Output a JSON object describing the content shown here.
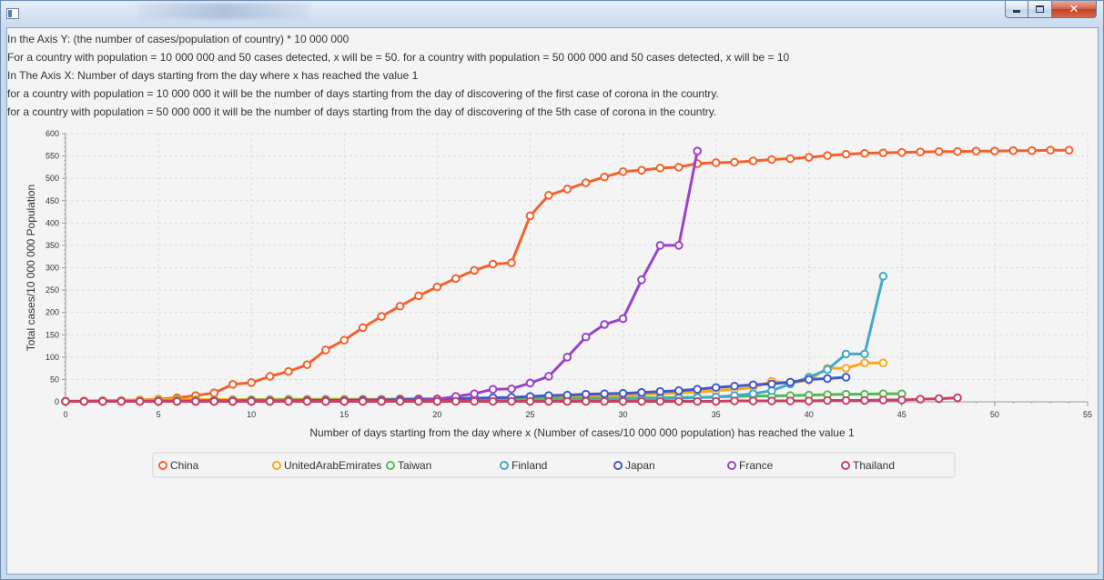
{
  "info_lines": [
    "In the Axis Y: (the number of cases/population of country) * 10 000 000",
    "For a country with population = 10 000 000 and 50 cases detected, x will be = 50. for a country with population = 50 000 000 and 50 cases detected, x will be = 10",
    "In The Axis X: Number of days starting from the day where x has reached the value 1",
    "for a country with population = 10 000 000 it will be the number of days starting from the day of discovering of the first case of corona in the country.",
    "for a country with population = 50 000 000 it will be the number of days starting from the day of discovering of the 5th case of corona in the country."
  ],
  "window": {
    "close_glyph": "✕"
  },
  "chart_data": {
    "type": "line",
    "title": "",
    "xlabel": "Number of days starting from the day where x (Number of cases/10 000 000 population) has reached the value 1",
    "ylabel": "Total cases/10 000 000 Population",
    "xlim": [
      0,
      55
    ],
    "ylim": [
      0,
      600
    ],
    "xticks": [
      0,
      5,
      10,
      15,
      20,
      25,
      30,
      35,
      40,
      45,
      50,
      55
    ],
    "yticks": [
      0,
      50,
      100,
      150,
      200,
      250,
      300,
      350,
      400,
      450,
      500,
      550,
      600
    ],
    "grid": true,
    "legend_position": "bottom",
    "series": [
      {
        "name": "China",
        "color": "#f3622d",
        "x": [
          0,
          1,
          2,
          3,
          4,
          5,
          6,
          7,
          8,
          9,
          10,
          11,
          12,
          13,
          14,
          15,
          16,
          17,
          18,
          19,
          20,
          21,
          22,
          23,
          24,
          25,
          26,
          27,
          28,
          29,
          30,
          31,
          32,
          33,
          34,
          35,
          36,
          37,
          38,
          39,
          40,
          41,
          42,
          43,
          44,
          45,
          46,
          47,
          48,
          49,
          50,
          51,
          52,
          53,
          54
        ],
        "y": [
          1,
          2,
          2,
          3,
          4,
          6,
          9,
          14,
          20,
          39,
          43,
          57,
          68,
          83,
          116,
          138,
          166,
          191,
          214,
          237,
          257,
          276,
          294,
          308,
          311,
          416,
          462,
          476,
          490,
          503,
          515,
          518,
          523,
          525,
          533,
          535,
          536,
          539,
          542,
          544,
          547,
          551,
          554,
          556,
          557,
          558,
          559,
          560,
          560,
          561,
          561,
          562,
          562,
          563,
          563
        ]
      },
      {
        "name": "UnitedArabEmirates",
        "color": "#fba71b",
        "x": [
          0,
          1,
          2,
          3,
          4,
          5,
          6,
          7,
          8,
          9,
          10,
          11,
          12,
          13,
          14,
          15,
          16,
          17,
          18,
          19,
          20,
          21,
          22,
          23,
          24,
          25,
          26,
          27,
          28,
          29,
          30,
          31,
          32,
          33,
          34,
          35,
          36,
          37,
          38,
          39,
          40,
          41,
          42,
          43,
          44
        ],
        "y": [
          1,
          2,
          3,
          3,
          4,
          5,
          5,
          5,
          5,
          5,
          5,
          5,
          6,
          6,
          6,
          6,
          6,
          6,
          7,
          7,
          7,
          8,
          8,
          9,
          9,
          10,
          10,
          11,
          12,
          13,
          14,
          16,
          18,
          20,
          22,
          25,
          28,
          32,
          46,
          42,
          49,
          75,
          75,
          87,
          87
        ]
      },
      {
        "name": "Taiwan",
        "color": "#57b757",
        "x": [
          0,
          1,
          2,
          3,
          4,
          5,
          6,
          7,
          8,
          9,
          10,
          11,
          12,
          13,
          14,
          15,
          16,
          17,
          18,
          19,
          20,
          21,
          22,
          23,
          24,
          25,
          26,
          27,
          28,
          29,
          30,
          31,
          32,
          33,
          34,
          35,
          36,
          37,
          38,
          39,
          40,
          41,
          42,
          43,
          44,
          45
        ],
        "y": [
          1,
          1,
          2,
          2,
          2,
          3,
          3,
          3,
          3,
          3,
          4,
          4,
          4,
          4,
          4,
          4,
          4,
          4,
          5,
          5,
          5,
          5,
          6,
          6,
          6,
          7,
          7,
          7,
          8,
          8,
          8,
          9,
          9,
          10,
          10,
          11,
          12,
          13,
          13,
          14,
          15,
          16,
          17,
          17,
          18,
          18
        ]
      },
      {
        "name": "Finland",
        "color": "#41a9c9",
        "x": [
          0,
          1,
          2,
          3,
          4,
          5,
          6,
          7,
          8,
          9,
          10,
          11,
          12,
          13,
          14,
          15,
          16,
          17,
          18,
          19,
          20,
          21,
          22,
          23,
          24,
          25,
          26,
          27,
          28,
          29,
          30,
          31,
          32,
          33,
          34,
          35,
          36,
          37,
          38,
          39,
          40,
          41,
          42,
          43,
          44
        ],
        "y": [
          1,
          1,
          1,
          1,
          1,
          1,
          1,
          1,
          1,
          1,
          1,
          1,
          1,
          1,
          1,
          1,
          1,
          1,
          1,
          1,
          1,
          2,
          2,
          2,
          2,
          2,
          3,
          3,
          4,
          4,
          5,
          6,
          7,
          8,
          9,
          11,
          14,
          18,
          25,
          40,
          55,
          72,
          107,
          107,
          281
        ]
      },
      {
        "name": "Japan",
        "color": "#4258c9",
        "x": [
          0,
          1,
          2,
          3,
          4,
          5,
          6,
          7,
          8,
          9,
          10,
          11,
          12,
          13,
          14,
          15,
          16,
          17,
          18,
          19,
          20,
          21,
          22,
          23,
          24,
          25,
          26,
          27,
          28,
          29,
          30,
          31,
          32,
          33,
          34,
          35,
          36,
          37,
          38,
          39,
          40,
          41,
          42
        ],
        "y": [
          1,
          1,
          1,
          1,
          1,
          1,
          1,
          1,
          2,
          2,
          2,
          2,
          2,
          3,
          3,
          3,
          4,
          4,
          5,
          6,
          6,
          7,
          8,
          9,
          10,
          12,
          14,
          15,
          17,
          18,
          19,
          21,
          23,
          25,
          28,
          32,
          35,
          38,
          40,
          44,
          50,
          52,
          55
        ]
      },
      {
        "name": "France",
        "color": "#9a42c8",
        "x": [
          0,
          1,
          2,
          3,
          4,
          5,
          6,
          7,
          8,
          9,
          10,
          11,
          12,
          13,
          14,
          15,
          16,
          17,
          18,
          19,
          20,
          21,
          22,
          23,
          24,
          25,
          26,
          27,
          28,
          29,
          30,
          31,
          32,
          33,
          34
        ],
        "y": [
          1,
          1,
          1,
          1,
          1,
          1,
          1,
          1,
          1,
          1,
          1,
          1,
          1,
          1,
          1,
          1,
          1,
          1,
          2,
          3,
          6,
          12,
          18,
          28,
          29,
          42,
          57,
          100,
          145,
          173,
          186,
          273,
          350,
          350,
          561
        ]
      },
      {
        "name": "Thailand",
        "color": "#c84164",
        "x": [
          0,
          1,
          2,
          3,
          4,
          5,
          6,
          7,
          8,
          9,
          10,
          11,
          12,
          13,
          14,
          15,
          16,
          17,
          18,
          19,
          20,
          21,
          22,
          23,
          24,
          25,
          26,
          27,
          28,
          29,
          30,
          31,
          32,
          33,
          34,
          35,
          36,
          37,
          38,
          39,
          40,
          41,
          42,
          43,
          44,
          45,
          46,
          47,
          48
        ],
        "y": [
          1,
          1,
          1,
          1,
          1,
          1,
          1,
          1,
          1,
          1,
          1,
          1,
          1,
          1,
          1,
          1,
          1,
          1,
          1,
          1,
          1,
          1,
          1,
          1,
          1,
          1,
          1,
          1,
          1,
          1,
          1,
          1,
          1,
          1,
          1,
          1,
          2,
          2,
          2,
          2,
          2,
          3,
          3,
          3,
          4,
          4,
          6,
          7,
          9
        ]
      }
    ]
  }
}
